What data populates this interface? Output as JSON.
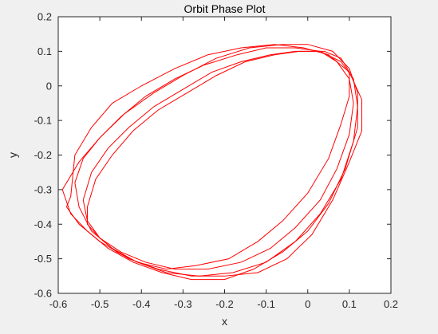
{
  "figure": {
    "background": "#f0f0f0",
    "axes_background": "#ffffff"
  },
  "chart_data": {
    "type": "line",
    "title": "Orbit Phase Plot",
    "xlabel": "x",
    "ylabel": "y",
    "xlim": [
      -0.6,
      0.2
    ],
    "ylim": [
      -0.6,
      0.2
    ],
    "xticks": [
      -0.6,
      -0.5,
      -0.4,
      -0.3,
      -0.2,
      -0.1,
      0,
      0.1,
      0.2
    ],
    "yticks": [
      -0.6,
      -0.5,
      -0.4,
      -0.3,
      -0.2,
      -0.1,
      0,
      0.1,
      0.2
    ],
    "xtick_labels": [
      "-0.6",
      "-0.5",
      "-0.4",
      "-0.3",
      "-0.2",
      "-0.1",
      "0",
      "0.1",
      "0.2"
    ],
    "ytick_labels": [
      "-0.6",
      "-0.5",
      "-0.4",
      "-0.3",
      "-0.2",
      "-0.1",
      "0",
      "0.1",
      "0.2"
    ],
    "grid": false,
    "series": [
      {
        "color": "#ff0000",
        "x": [
          -0.59,
          -0.55,
          -0.5,
          -0.44,
          -0.37,
          -0.3,
          -0.22,
          -0.14,
          -0.06,
          0.0,
          0.06,
          0.1,
          0.12,
          0.12,
          0.09,
          0.05,
          0.0,
          -0.06,
          -0.13,
          -0.2,
          -0.28,
          -0.35,
          -0.42,
          -0.48,
          -0.53,
          -0.57,
          -0.59
        ],
        "y": [
          -0.3,
          -0.22,
          -0.15,
          -0.08,
          -0.02,
          0.03,
          0.08,
          0.11,
          0.12,
          0.12,
          0.1,
          0.05,
          -0.02,
          -0.12,
          -0.24,
          -0.34,
          -0.42,
          -0.48,
          -0.53,
          -0.56,
          -0.56,
          -0.54,
          -0.51,
          -0.47,
          -0.42,
          -0.37,
          -0.3
        ]
      },
      {
        "color": "#ff0000",
        "x": [
          -0.57,
          -0.56,
          -0.52,
          -0.47,
          -0.4,
          -0.32,
          -0.24,
          -0.16,
          -0.08,
          -0.01,
          0.05,
          0.1,
          0.13,
          0.13,
          0.1,
          0.06,
          0.01,
          -0.05,
          -0.12,
          -0.2,
          -0.28,
          -0.36,
          -0.43,
          -0.5,
          -0.55,
          -0.58,
          -0.57
        ],
        "y": [
          -0.32,
          -0.2,
          -0.12,
          -0.05,
          0.0,
          0.05,
          0.09,
          0.11,
          0.12,
          0.11,
          0.09,
          0.04,
          -0.04,
          -0.13,
          -0.22,
          -0.33,
          -0.43,
          -0.5,
          -0.54,
          -0.55,
          -0.55,
          -0.53,
          -0.5,
          -0.45,
          -0.4,
          -0.35,
          -0.32
        ]
      },
      {
        "color": "#ff0000",
        "x": [
          -0.56,
          -0.54,
          -0.5,
          -0.45,
          -0.39,
          -0.32,
          -0.25,
          -0.17,
          -0.1,
          -0.03,
          0.03,
          0.08,
          0.11,
          0.12,
          0.11,
          0.08,
          0.03,
          -0.03,
          -0.1,
          -0.18,
          -0.26,
          -0.34,
          -0.41,
          -0.47,
          -0.52,
          -0.55,
          -0.56
        ],
        "y": [
          -0.28,
          -0.21,
          -0.15,
          -0.09,
          -0.03,
          0.02,
          0.06,
          0.09,
          0.11,
          0.11,
          0.1,
          0.07,
          0.02,
          -0.06,
          -0.16,
          -0.27,
          -0.37,
          -0.45,
          -0.51,
          -0.54,
          -0.55,
          -0.54,
          -0.51,
          -0.47,
          -0.42,
          -0.35,
          -0.28
        ]
      },
      {
        "color": "#ff0000",
        "x": [
          -0.54,
          -0.52,
          -0.48,
          -0.43,
          -0.37,
          -0.3,
          -0.23,
          -0.16,
          -0.09,
          -0.03,
          0.03,
          0.07,
          0.1,
          0.11,
          0.1,
          0.07,
          0.03,
          -0.03,
          -0.09,
          -0.16,
          -0.24,
          -0.32,
          -0.39,
          -0.45,
          -0.5,
          -0.53,
          -0.54
        ],
        "y": [
          -0.33,
          -0.25,
          -0.18,
          -0.12,
          -0.06,
          -0.01,
          0.04,
          0.07,
          0.09,
          0.1,
          0.1,
          0.07,
          0.02,
          -0.05,
          -0.14,
          -0.24,
          -0.33,
          -0.41,
          -0.47,
          -0.51,
          -0.53,
          -0.53,
          -0.51,
          -0.48,
          -0.44,
          -0.39,
          -0.33
        ]
      },
      {
        "color": "#ff0000",
        "x": [
          -0.53,
          -0.51,
          -0.47,
          -0.42,
          -0.36,
          -0.29,
          -0.22,
          -0.15,
          -0.08,
          -0.02,
          0.04,
          0.08,
          0.1,
          0.1,
          0.08,
          0.05,
          0.0,
          -0.06,
          -0.12,
          -0.19,
          -0.27,
          -0.34,
          -0.41,
          -0.46,
          -0.5,
          -0.53,
          -0.53
        ],
        "y": [
          -0.35,
          -0.27,
          -0.2,
          -0.13,
          -0.07,
          -0.02,
          0.03,
          0.07,
          0.09,
          0.1,
          0.1,
          0.08,
          0.04,
          -0.03,
          -0.11,
          -0.21,
          -0.31,
          -0.39,
          -0.45,
          -0.5,
          -0.52,
          -0.53,
          -0.51,
          -0.48,
          -0.44,
          -0.4,
          -0.35
        ]
      }
    ]
  }
}
